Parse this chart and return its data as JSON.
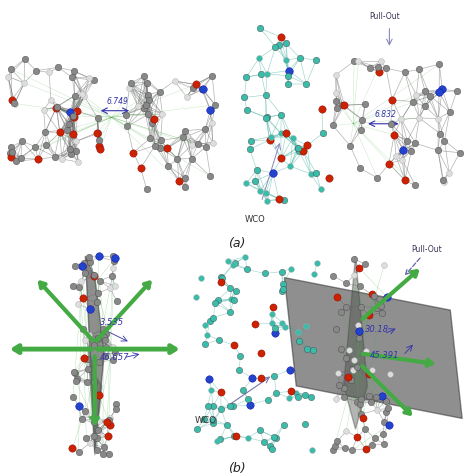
{
  "background_color": "#ffffff",
  "figsize": [
    4.74,
    4.76
  ],
  "dpi": 100,
  "label_a": "(a)",
  "label_b": "(b)",
  "ann_tl_val": "6.749",
  "ann_tr_val": "6.832",
  "ann_bl_val1": "3.535",
  "ann_bl_val2": "46.657",
  "ann_br_val1": "30.18",
  "ann_br_val2": "45.391",
  "blue_text_color": "#3333aa",
  "pullout_color": "#333366",
  "wco_arrow_color": "#7777aa",
  "green_arrow_color": "#44aa44",
  "dark_plane_color": "#333333",
  "teal_color": "#3abcaa",
  "carbon_color": "#888888",
  "oxygen_color": "#cc2200",
  "nitrogen_color": "#2244cc",
  "hydrogen_color": "#dddddd",
  "bond_color": "#666666"
}
